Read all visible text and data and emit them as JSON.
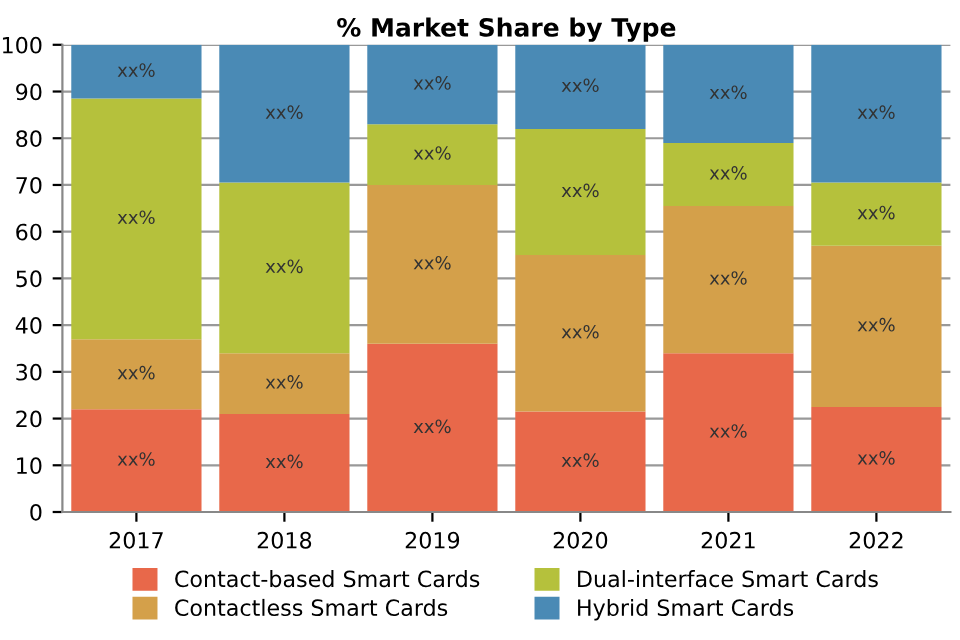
{
  "chart_data": {
    "type": "bar",
    "title": "% Market Share by Type",
    "stacked": true,
    "categories": [
      "2017",
      "2018",
      "2019",
      "2020",
      "2021",
      "2022"
    ],
    "series": [
      {
        "name": "Contact-based Smart Cards",
        "color": "#e8684a",
        "values": [
          22,
          21,
          36,
          21.5,
          34,
          22.5
        ],
        "value_labels": [
          "xx%",
          "xx%",
          "xx%",
          "xx%",
          "xx%",
          "xx%"
        ]
      },
      {
        "name": "Contactless Smart Cards",
        "color": "#d4a04a",
        "values": [
          15,
          13,
          34,
          33.5,
          31.5,
          34.5
        ],
        "value_labels": [
          "xx%",
          "xx%",
          "xx%",
          "xx%",
          "xx%",
          "xx%"
        ]
      },
      {
        "name": "Dual-interface Smart Cards",
        "color": "#b5c13c",
        "values": [
          51.5,
          36.5,
          13,
          27,
          13.5,
          13.5
        ],
        "value_labels": [
          "xx%",
          "xx%",
          "xx%",
          "xx%",
          "xx%",
          "xx%"
        ]
      },
      {
        "name": "Hybrid Smart Cards",
        "color": "#4a8ab5",
        "values": [
          11.5,
          29.5,
          17,
          18,
          21,
          29.5
        ],
        "value_labels": [
          "xx%",
          "xx%",
          "xx%",
          "xx%",
          "xx%",
          "xx%"
        ]
      }
    ],
    "ylim": [
      0,
      100
    ],
    "yticks": [
      0,
      10,
      20,
      30,
      40,
      50,
      60,
      70,
      80,
      90,
      100
    ],
    "grid": "y",
    "legend": "bottom"
  }
}
